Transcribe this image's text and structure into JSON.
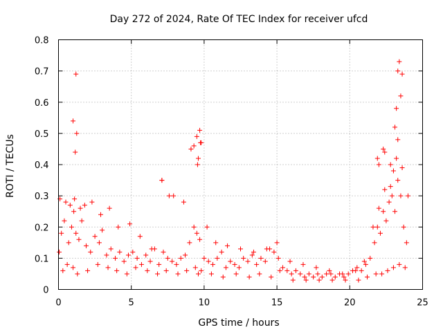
{
  "chart_data": {
    "type": "scatter",
    "title": "Day 272 of 2024, Rate Of TEC Index for receiver ufcd",
    "xlabel": "GPS time / hours",
    "ylabel": "ROTI / TECUs",
    "xlim": [
      0,
      25
    ],
    "ylim": [
      0,
      0.8
    ],
    "x_ticks": [
      "0",
      "5",
      "10",
      "15",
      "20",
      "25"
    ],
    "y_ticks": [
      "0",
      "0.1",
      "0.2",
      "0.3",
      "0.4",
      "0.5",
      "0.6",
      "0.7",
      "0.8"
    ],
    "grid": true,
    "marker": "+",
    "color": "#ff0000",
    "series": [
      {
        "name": "ROTI",
        "x": [
          0.05,
          0.2,
          0.4,
          0.7,
          0.9,
          1.05,
          1.2,
          1.4,
          1.6,
          1.9,
          2.2,
          2.5,
          2.8,
          3.0,
          3.3,
          3.6,
          3.9,
          4.2,
          4.5,
          4.8,
          5.1,
          5.4,
          5.7,
          6.0,
          6.3,
          6.6,
          6.9,
          7.2,
          7.5,
          7.8,
          8.1,
          8.4,
          8.7,
          9.0,
          9.3,
          9.5,
          9.7,
          10.0,
          10.3,
          10.6,
          10.9,
          11.2,
          11.5,
          11.8,
          12.1,
          12.4,
          12.7,
          13.0,
          13.3,
          13.6,
          13.9,
          14.2,
          14.5,
          14.8,
          15.1,
          15.4,
          15.7,
          16.0,
          16.3,
          16.6,
          16.9,
          17.2,
          17.5,
          17.8,
          18.1,
          18.4,
          18.7,
          19.0,
          19.3,
          19.6,
          19.9,
          20.2,
          20.5,
          20.8,
          21.1,
          21.4,
          21.7,
          21.9,
          22.1,
          22.3,
          22.5,
          22.7,
          22.9,
          23.1,
          23.3,
          23.5,
          23.7,
          23.9,
          0.3,
          0.6,
          1.0,
          1.3,
          2.0,
          2.7,
          3.4,
          4.0,
          4.7,
          5.3,
          6.1,
          6.8,
          7.4,
          8.2,
          8.8,
          9.4,
          9.6,
          9.8,
          10.5,
          11.3,
          12.2,
          13.1,
          13.8,
          14.6,
          15.2,
          16.1,
          17.0,
          17.9,
          18.8,
          19.7,
          20.6,
          21.2,
          21.8,
          22.2,
          22.6,
          23.0,
          23.4,
          23.8,
          0.1,
          0.5,
          0.8,
          1.1,
          1.5,
          1.8,
          2.3,
          2.9,
          3.5,
          4.1,
          4.9,
          5.6,
          6.4,
          7.1,
          7.9,
          8.6,
          9.1,
          9.55,
          9.75,
          10.2,
          10.8,
          11.6,
          12.5,
          13.4,
          14.3,
          15.0,
          15.9,
          16.8,
          17.7,
          18.6,
          19.5,
          20.4,
          21.0,
          21.6,
          22.0,
          22.4,
          22.8,
          23.2,
          23.6,
          24.0,
          1.0,
          1.15,
          1.2,
          1.25,
          7.1,
          7.6,
          9.3,
          9.5,
          9.6,
          9.7,
          9.8,
          21.9,
          22.0,
          22.3,
          22.4,
          22.8,
          23.0,
          23.2,
          23.3,
          23.4,
          23.5,
          23.6,
          23.3,
          23.1
        ],
        "y": [
          0.12,
          0.18,
          0.22,
          0.15,
          0.2,
          0.25,
          0.18,
          0.16,
          0.22,
          0.14,
          0.12,
          0.17,
          0.15,
          0.19,
          0.11,
          0.13,
          0.1,
          0.12,
          0.09,
          0.11,
          0.12,
          0.1,
          0.08,
          0.11,
          0.09,
          0.13,
          0.08,
          0.12,
          0.1,
          0.09,
          0.08,
          0.1,
          0.11,
          0.15,
          0.2,
          0.18,
          0.16,
          0.1,
          0.09,
          0.08,
          0.1,
          0.12,
          0.07,
          0.09,
          0.08,
          0.07,
          0.1,
          0.09,
          0.11,
          0.08,
          0.1,
          0.09,
          0.13,
          0.12,
          0.1,
          0.07,
          0.06,
          0.05,
          0.06,
          0.05,
          0.04,
          0.05,
          0.04,
          0.05,
          0.04,
          0.05,
          0.05,
          0.04,
          0.05,
          0.04,
          0.05,
          0.06,
          0.07,
          0.06,
          0.08,
          0.1,
          0.15,
          0.2,
          0.18,
          0.25,
          0.22,
          0.28,
          0.3,
          0.25,
          0.35,
          0.3,
          0.2,
          0.15,
          0.06,
          0.08,
          0.07,
          0.05,
          0.06,
          0.08,
          0.07,
          0.06,
          0.05,
          0.07,
          0.06,
          0.05,
          0.06,
          0.05,
          0.06,
          0.07,
          0.05,
          0.06,
          0.05,
          0.04,
          0.05,
          0.04,
          0.05,
          0.04,
          0.06,
          0.03,
          0.03,
          0.03,
          0.03,
          0.03,
          0.03,
          0.04,
          0.05,
          0.05,
          0.06,
          0.07,
          0.08,
          0.07,
          0.29,
          0.28,
          0.27,
          0.29,
          0.26,
          0.27,
          0.28,
          0.24,
          0.26,
          0.2,
          0.21,
          0.17,
          0.13,
          0.35,
          0.3,
          0.28,
          0.45,
          0.4,
          0.47,
          0.2,
          0.15,
          0.14,
          0.13,
          0.12,
          0.13,
          0.15,
          0.09,
          0.08,
          0.07,
          0.06,
          0.05,
          0.06,
          0.09,
          0.2,
          0.26,
          0.32,
          0.4,
          0.42,
          0.39,
          0.3,
          0.54,
          0.44,
          0.69,
          0.5,
          0.35,
          0.3,
          0.46,
          0.49,
          0.42,
          0.51,
          0.47,
          0.42,
          0.4,
          0.45,
          0.44,
          0.33,
          0.38,
          0.58,
          0.48,
          0.73,
          0.62,
          0.69,
          0.7,
          0.52
        ]
      }
    ]
  }
}
